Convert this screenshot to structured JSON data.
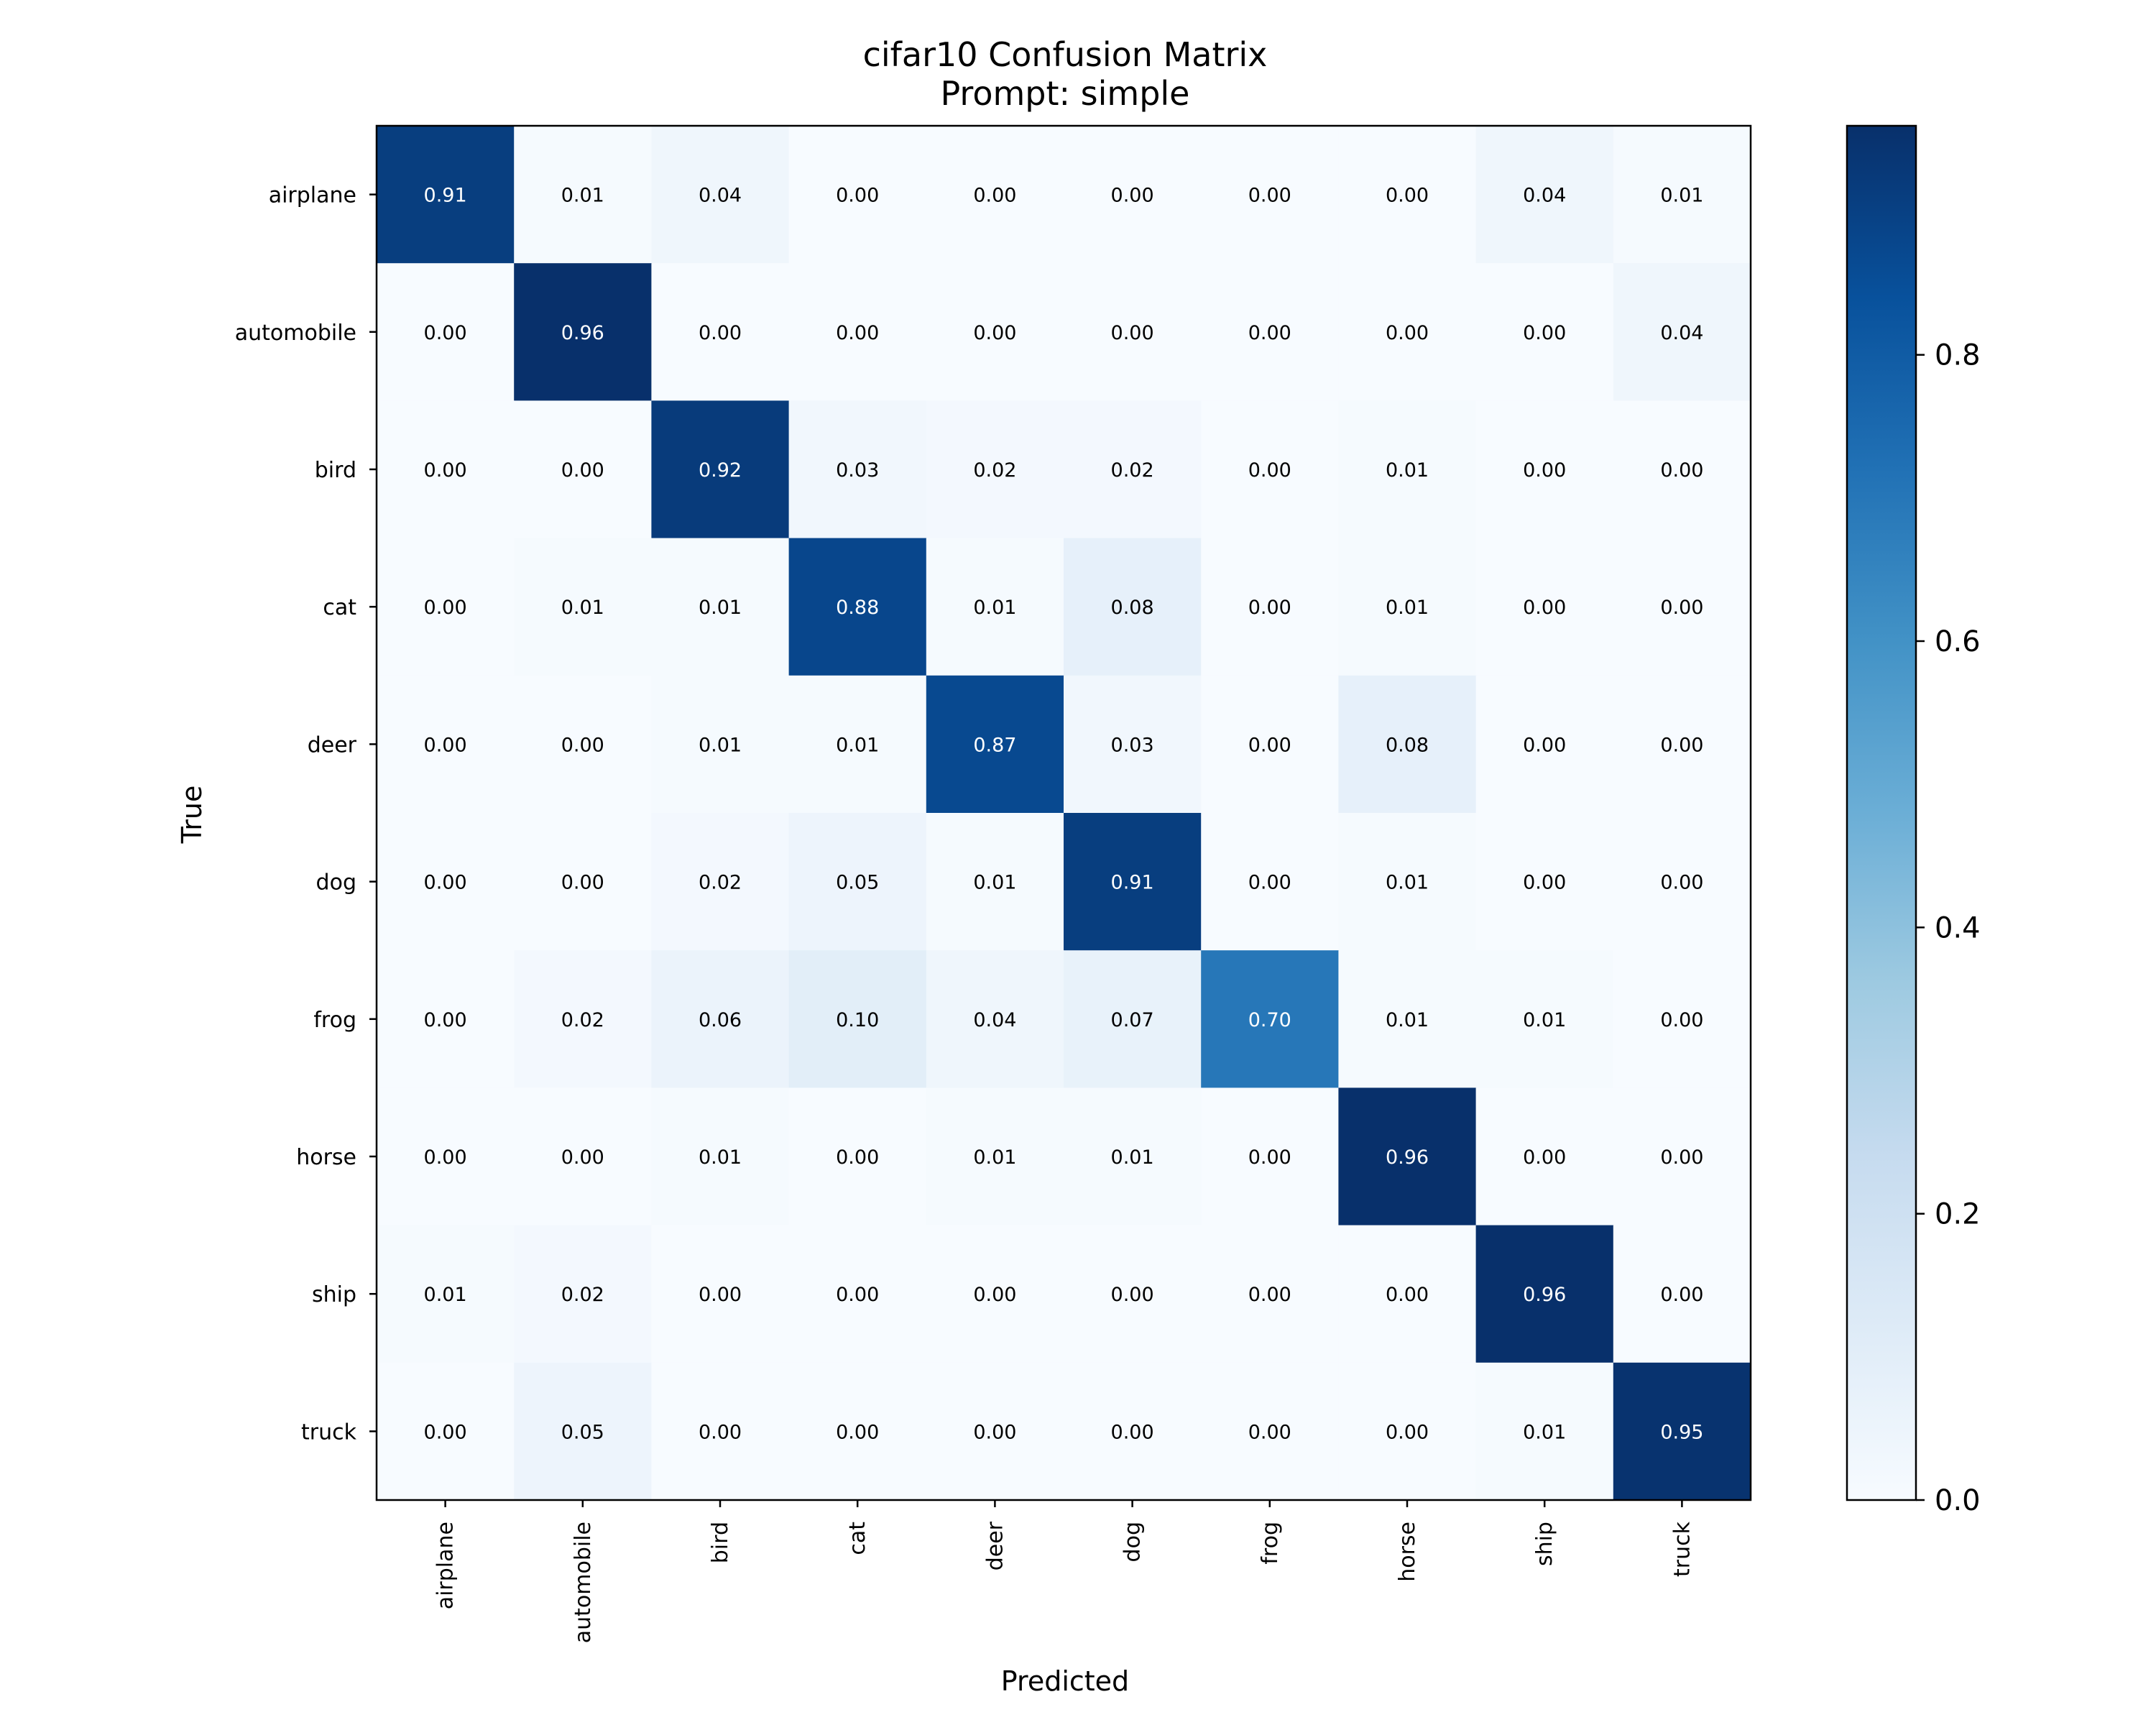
{
  "chart_data": {
    "type": "heatmap",
    "title": "cifar10 Confusion Matrix",
    "subtitle": "Prompt: simple",
    "xlabel": "Predicted",
    "ylabel": "True",
    "row_labels": [
      "airplane",
      "automobile",
      "bird",
      "cat",
      "deer",
      "dog",
      "frog",
      "horse",
      "ship",
      "truck"
    ],
    "col_labels": [
      "airplane",
      "automobile",
      "bird",
      "cat",
      "deer",
      "dog",
      "frog",
      "horse",
      "ship",
      "truck"
    ],
    "values": [
      [
        0.91,
        0.01,
        0.04,
        0.0,
        0.0,
        0.0,
        0.0,
        0.0,
        0.04,
        0.01
      ],
      [
        0.0,
        0.96,
        0.0,
        0.0,
        0.0,
        0.0,
        0.0,
        0.0,
        0.0,
        0.04
      ],
      [
        0.0,
        0.0,
        0.92,
        0.03,
        0.02,
        0.02,
        0.0,
        0.01,
        0.0,
        0.0
      ],
      [
        0.0,
        0.01,
        0.01,
        0.88,
        0.01,
        0.08,
        0.0,
        0.01,
        0.0,
        0.0
      ],
      [
        0.0,
        0.0,
        0.01,
        0.01,
        0.87,
        0.03,
        0.0,
        0.08,
        0.0,
        0.0
      ],
      [
        0.0,
        0.0,
        0.02,
        0.05,
        0.01,
        0.91,
        0.0,
        0.01,
        0.0,
        0.0
      ],
      [
        0.0,
        0.02,
        0.06,
        0.1,
        0.04,
        0.07,
        0.7,
        0.01,
        0.01,
        0.0
      ],
      [
        0.0,
        0.0,
        0.01,
        0.0,
        0.01,
        0.01,
        0.0,
        0.96,
        0.0,
        0.0
      ],
      [
        0.01,
        0.02,
        0.0,
        0.0,
        0.0,
        0.0,
        0.0,
        0.0,
        0.96,
        0.0
      ],
      [
        0.0,
        0.05,
        0.0,
        0.0,
        0.0,
        0.0,
        0.0,
        0.0,
        0.01,
        0.95
      ]
    ],
    "colormap": "Blues",
    "vmin": 0.0,
    "vmax": 0.96,
    "colorbar_ticks": [
      0.0,
      0.2,
      0.4,
      0.6,
      0.8
    ],
    "colorbar_tick_labels": [
      "0.0",
      "0.2",
      "0.4",
      "0.6",
      "0.8"
    ]
  }
}
